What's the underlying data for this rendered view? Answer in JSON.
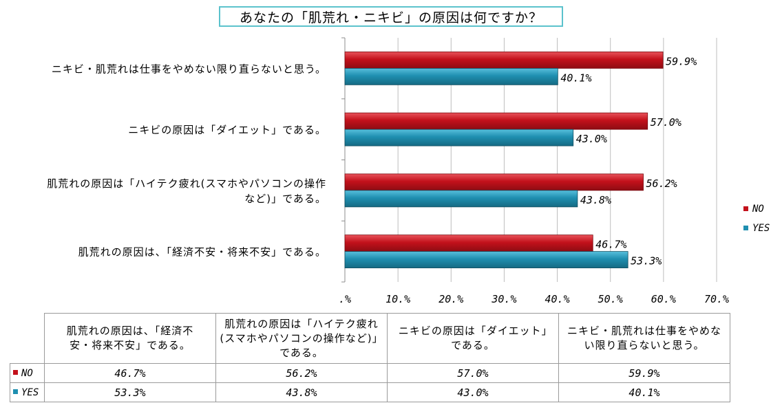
{
  "colors": {
    "no": "#c3111b",
    "yes": "#1f8fb0",
    "title_border": "#5bc2cc",
    "grid": "#bdbdbd"
  },
  "chart_data": {
    "type": "bar",
    "orientation": "horizontal",
    "title": "あなたの「肌荒れ・ニキビ」の原因は何ですか？",
    "categories": [
      [
        "ニキビ・肌荒れは仕事をやめない限り直らないと思う。"
      ],
      [
        "ニキビの原因は「ダイエット」である。"
      ],
      [
        "肌荒れの原因は「ハイテク疲れ(スマホやパソコンの操作",
        "など)」である。"
      ],
      [
        "肌荒れの原因は、「経済不安・将来不安」である。"
      ]
    ],
    "series": [
      {
        "name": "NO",
        "values": [
          59.9,
          57.0,
          56.2,
          46.7
        ],
        "labels": [
          "59.9%",
          "57.0%",
          "56.2%",
          "46.7%"
        ]
      },
      {
        "name": "YES",
        "values": [
          40.1,
          43.0,
          43.8,
          53.3
        ],
        "labels": [
          "40.1%",
          "43.0%",
          "43.8%",
          "53.3%"
        ]
      }
    ],
    "xlim": [
      0,
      70
    ],
    "xticks": [
      ".%",
      "10.%",
      "20.%",
      "30.%",
      "40.%",
      "50.%",
      "60.%",
      "70.%"
    ],
    "grid": true,
    "legend": {
      "position": "right",
      "entries": [
        "NO",
        "YES"
      ]
    }
  },
  "table": {
    "headers": [
      "肌荒れの原因は、「経済不安・将来不安」である。",
      "肌荒れの原因は「ハイテク疲れ(スマホやパソコンの操作など)」である。",
      "ニキビの原因は「ダイエット」である。",
      "ニキビ・肌荒れは仕事をやめない限り直らないと思う。"
    ],
    "rows": [
      {
        "name": "NO",
        "cells": [
          "46.7%",
          "56.2%",
          "57.0%",
          "59.9%"
        ]
      },
      {
        "name": "YES",
        "cells": [
          "53.3%",
          "43.8%",
          "43.0%",
          "40.1%"
        ]
      }
    ]
  }
}
